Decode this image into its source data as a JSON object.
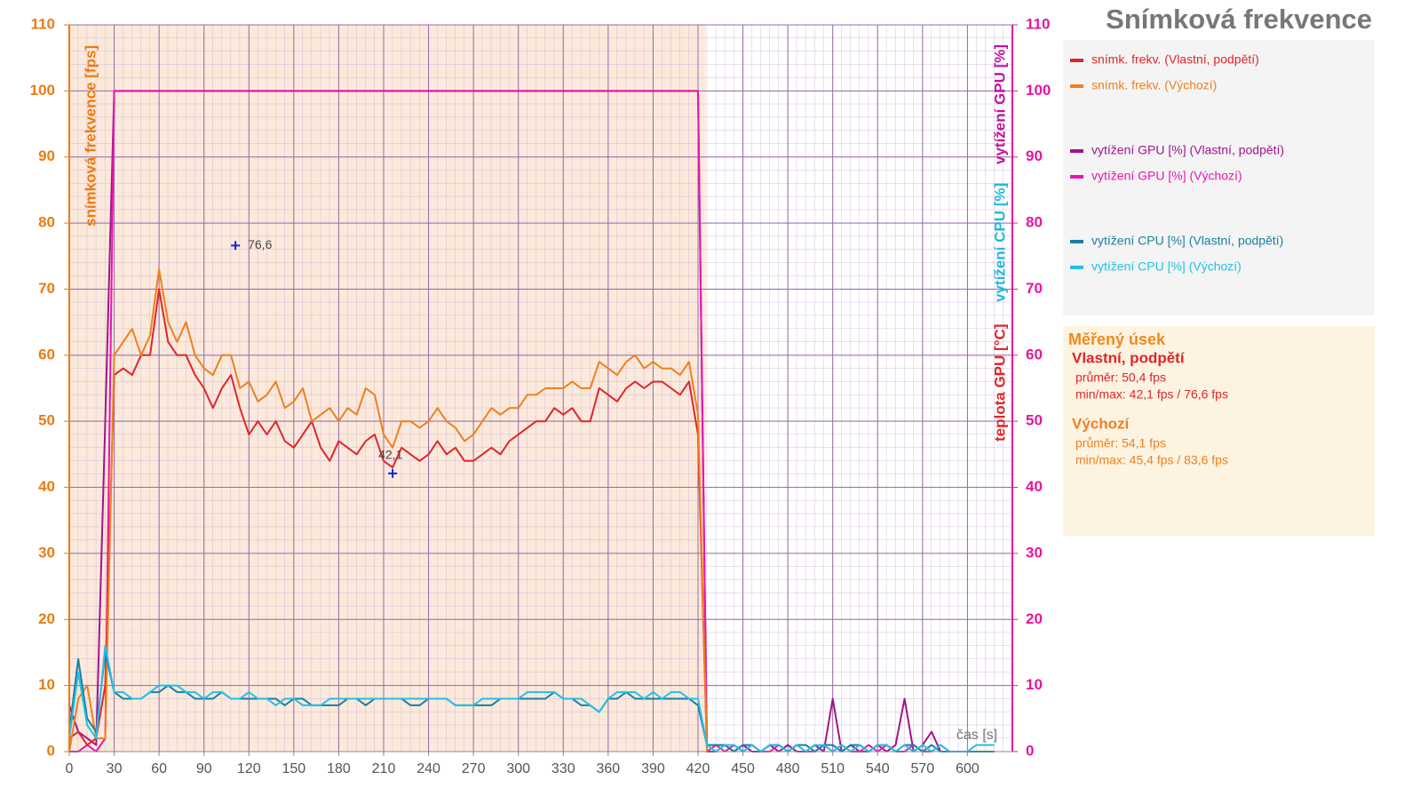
{
  "chart_data": {
    "type": "line",
    "title": "Snímková frekvence",
    "xlabel": "čas [s]",
    "ylabel": "snímková frekvence [fps]",
    "y2labels": [
      {
        "text": "vytížení GPU [%]",
        "color": "#c0149c"
      },
      {
        "text": "vytížení CPU [%]",
        "color": "#22b8e0"
      },
      {
        "text": "teplota GPU [°C]",
        "color": "#e0252a"
      }
    ],
    "xlim": [
      0,
      630
    ],
    "xticks": [
      0,
      30,
      60,
      90,
      120,
      150,
      180,
      210,
      240,
      270,
      300,
      330,
      360,
      390,
      420,
      450,
      480,
      510,
      540,
      570,
      600
    ],
    "ylim": [
      0,
      110
    ],
    "yticks": [
      0,
      10,
      20,
      30,
      40,
      50,
      60,
      70,
      80,
      90,
      100,
      110
    ],
    "y2lim": [
      0,
      110
    ],
    "y2ticks": [
      0,
      10,
      20,
      30,
      40,
      50,
      60,
      70,
      80,
      90,
      100,
      110
    ],
    "grid": true,
    "legend": "right",
    "measured_range": [
      0,
      425
    ],
    "x": [
      0,
      6,
      12,
      18,
      24,
      30,
      36,
      42,
      48,
      54,
      60,
      66,
      72,
      78,
      84,
      90,
      96,
      102,
      108,
      114,
      120,
      126,
      132,
      138,
      144,
      150,
      156,
      162,
      168,
      174,
      180,
      186,
      192,
      198,
      204,
      210,
      216,
      222,
      228,
      234,
      240,
      246,
      252,
      258,
      264,
      270,
      276,
      282,
      288,
      294,
      300,
      306,
      312,
      318,
      324,
      330,
      336,
      342,
      348,
      354,
      360,
      366,
      372,
      378,
      384,
      390,
      396,
      402,
      408,
      414,
      420,
      426,
      432,
      438,
      444,
      450,
      456,
      462,
      468,
      474,
      480,
      486,
      492,
      498,
      504,
      510,
      516,
      522,
      528,
      534,
      540,
      546,
      552,
      558,
      564,
      570,
      576,
      582,
      588,
      594,
      600,
      606,
      612,
      618
    ],
    "series": [
      {
        "name": "vytížení GPU [%] (Vlastní, podpětí)",
        "color": "#a0148c",
        "axis": "y2",
        "values": [
          7,
          3,
          2,
          1,
          50,
          100,
          100,
          100,
          100,
          100,
          100,
          100,
          100,
          100,
          100,
          100,
          100,
          100,
          100,
          100,
          100,
          100,
          100,
          100,
          100,
          100,
          100,
          100,
          100,
          100,
          100,
          100,
          100,
          100,
          100,
          100,
          100,
          100,
          100,
          100,
          100,
          100,
          100,
          100,
          100,
          100,
          100,
          100,
          100,
          100,
          100,
          100,
          100,
          100,
          100,
          100,
          100,
          100,
          100,
          100,
          100,
          100,
          100,
          100,
          100,
          100,
          100,
          100,
          100,
          100,
          100,
          0,
          0,
          1,
          0,
          1,
          0,
          0,
          1,
          0,
          1,
          0,
          0,
          1,
          0,
          8,
          0,
          1,
          0,
          0,
          1,
          0,
          1,
          8,
          0,
          1,
          3,
          0,
          0,
          0,
          0,
          0,
          0,
          0
        ]
      },
      {
        "name": "vytížení GPU [%] (Výchozí)",
        "color": "#e815b0",
        "axis": "y2",
        "values": [
          0,
          0,
          1,
          0,
          2,
          100,
          100,
          100,
          100,
          100,
          100,
          100,
          100,
          100,
          100,
          100,
          100,
          100,
          100,
          100,
          100,
          100,
          100,
          100,
          100,
          100,
          100,
          100,
          100,
          100,
          100,
          100,
          100,
          100,
          100,
          100,
          100,
          100,
          100,
          100,
          100,
          100,
          100,
          100,
          100,
          100,
          100,
          100,
          100,
          100,
          100,
          100,
          100,
          100,
          100,
          100,
          100,
          100,
          100,
          100,
          100,
          100,
          100,
          100,
          100,
          100,
          100,
          100,
          100,
          100,
          100,
          0,
          1,
          0,
          1,
          0,
          1,
          0,
          0,
          1,
          0,
          1,
          0,
          0,
          1,
          0,
          1,
          0,
          0,
          1,
          0,
          1,
          0,
          0,
          1,
          0,
          0,
          1,
          0,
          0,
          0,
          0,
          0,
          0
        ]
      },
      {
        "name": "snímk. frekv. (Vlastní, podpětí)",
        "color": "#e0252a",
        "values": [
          2,
          3,
          1,
          2,
          10,
          57,
          58,
          57,
          60,
          60,
          70,
          62,
          60,
          60,
          57,
          55,
          52,
          55,
          57,
          52,
          48,
          50,
          48,
          50,
          47,
          46,
          48,
          50,
          46,
          44,
          47,
          46,
          45,
          47,
          48,
          44,
          43,
          46,
          45,
          44,
          45,
          47,
          45,
          46,
          44,
          44,
          45,
          46,
          45,
          47,
          48,
          49,
          50,
          50,
          52,
          51,
          52,
          50,
          50,
          55,
          54,
          53,
          55,
          56,
          55,
          56,
          56,
          55,
          54,
          56,
          48,
          0,
          null,
          null,
          null,
          null,
          null,
          null,
          null,
          null,
          null,
          null,
          null,
          null,
          null,
          null,
          null,
          null,
          null,
          null,
          null,
          null,
          null,
          null,
          null,
          null,
          null,
          null,
          null,
          null,
          null,
          null,
          null,
          null
        ]
      },
      {
        "name": "snímk. frekv. (Výchozí)",
        "color": "#f07f1e",
        "values": [
          0,
          8,
          10,
          2,
          2,
          60,
          62,
          64,
          60,
          63,
          73,
          65,
          62,
          65,
          60,
          58,
          57,
          60,
          60,
          55,
          56,
          53,
          54,
          56,
          52,
          53,
          55,
          50,
          51,
          52,
          50,
          52,
          51,
          55,
          54,
          48,
          46,
          50,
          50,
          49,
          50,
          52,
          50,
          49,
          47,
          48,
          50,
          52,
          51,
          52,
          52,
          54,
          54,
          55,
          55,
          55,
          56,
          55,
          55,
          59,
          58,
          57,
          59,
          60,
          58,
          59,
          58,
          58,
          57,
          59,
          51,
          0,
          null,
          null,
          null,
          null,
          null,
          null,
          null,
          null,
          null,
          null,
          null,
          null,
          null,
          null,
          null,
          null,
          null,
          null,
          null,
          null,
          null,
          null,
          null,
          null,
          null,
          null,
          null,
          null,
          null,
          null,
          null,
          null
        ]
      },
      {
        "name": "vytížení CPU [%] (Vlastní, podpětí)",
        "color": "#1a7fa0",
        "axis": "y2",
        "values": [
          3,
          14,
          5,
          3,
          15,
          9,
          8,
          8,
          8,
          9,
          9,
          10,
          9,
          9,
          8,
          8,
          8,
          9,
          8,
          8,
          8,
          8,
          8,
          8,
          7,
          8,
          8,
          7,
          7,
          7,
          7,
          8,
          8,
          7,
          8,
          8,
          8,
          8,
          7,
          7,
          8,
          8,
          8,
          7,
          7,
          7,
          7,
          7,
          8,
          8,
          8,
          8,
          8,
          8,
          9,
          8,
          8,
          7,
          7,
          6,
          8,
          8,
          9,
          8,
          8,
          8,
          8,
          8,
          8,
          8,
          7,
          1,
          1,
          1,
          0,
          1,
          1,
          0,
          1,
          1,
          0,
          1,
          1,
          0,
          1,
          1,
          0,
          1,
          1,
          0,
          1,
          1,
          0,
          1,
          1,
          0,
          1,
          0,
          0,
          0,
          0,
          0,
          0,
          0
        ]
      },
      {
        "name": "vytížení CPU [%] (Výchozí)",
        "color": "#22c0e8",
        "axis": "y2",
        "values": [
          2,
          12,
          4,
          2,
          16,
          9,
          9,
          8,
          8,
          9,
          10,
          10,
          10,
          9,
          9,
          8,
          9,
          9,
          8,
          8,
          9,
          8,
          8,
          7,
          8,
          8,
          7,
          7,
          7,
          8,
          8,
          8,
          8,
          8,
          8,
          8,
          8,
          8,
          8,
          8,
          8,
          8,
          8,
          7,
          7,
          7,
          8,
          8,
          8,
          8,
          8,
          9,
          9,
          9,
          9,
          8,
          8,
          8,
          7,
          6,
          8,
          9,
          9,
          9,
          8,
          9,
          8,
          9,
          9,
          8,
          8,
          1,
          0,
          1,
          1,
          0,
          1,
          0,
          1,
          1,
          0,
          1,
          0,
          1,
          1,
          0,
          1,
          0,
          1,
          0,
          1,
          1,
          0,
          1,
          0,
          1,
          0,
          1,
          0,
          0,
          0,
          1,
          1,
          1
        ]
      }
    ],
    "legend_order": [
      2,
      3,
      0,
      1,
      4,
      5
    ],
    "annotations": [
      {
        "x": 111,
        "y": 76.6,
        "text": "76,6"
      },
      {
        "x": 216,
        "y": 42.1,
        "text": "42,1"
      }
    ],
    "summary": {
      "title": "Měřený úsek",
      "groups": [
        {
          "name": "Vlastní, podpětí",
          "color": "#e0252a",
          "lines": [
            "průměr: 50,4 fps",
            "min/max: 42,1 fps / 76,6 fps"
          ]
        },
        {
          "name": "Výchozí",
          "color": "#f07f1e",
          "lines": [
            "průměr: 54,1 fps",
            "min/max: 45,4 fps / 83,6 fps"
          ]
        }
      ]
    }
  }
}
